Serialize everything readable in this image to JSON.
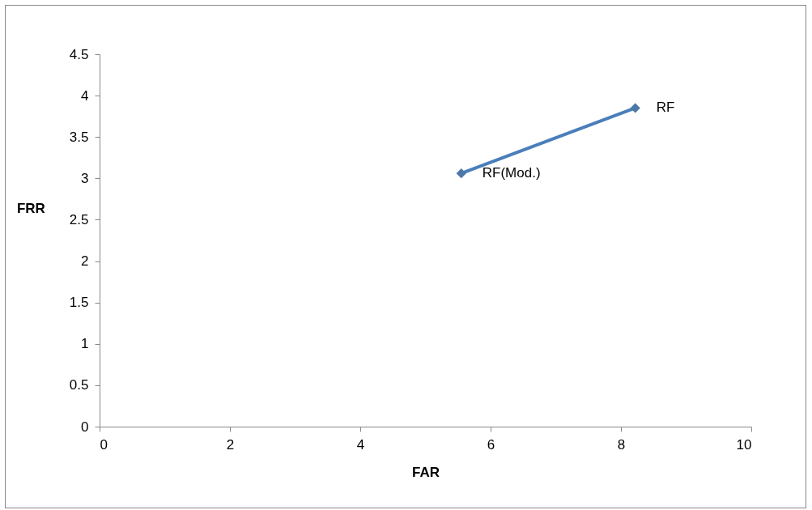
{
  "chart_data": {
    "type": "line",
    "xlabel": "FAR",
    "ylabel": "FRR",
    "x": [
      5.55,
      8.22
    ],
    "series": [
      {
        "color": "#4a7ebb",
        "values": [
          3.06,
          3.85
        ]
      }
    ],
    "xlim": [
      0,
      10
    ],
    "xticks": [
      0,
      2,
      4,
      6,
      8,
      10
    ],
    "ylim": [
      0,
      4.5
    ],
    "yticks": [
      0,
      0.5,
      1,
      1.5,
      2,
      2.5,
      3,
      3.5,
      4,
      4.5
    ],
    "grid": false,
    "marker": "diamond",
    "line_style": "solid",
    "annotations": [
      {
        "text": "RF(Mod.)",
        "x": 5.55,
        "y": 3.06
      },
      {
        "text": "RF",
        "x": 8.22,
        "y": 3.85
      }
    ]
  }
}
